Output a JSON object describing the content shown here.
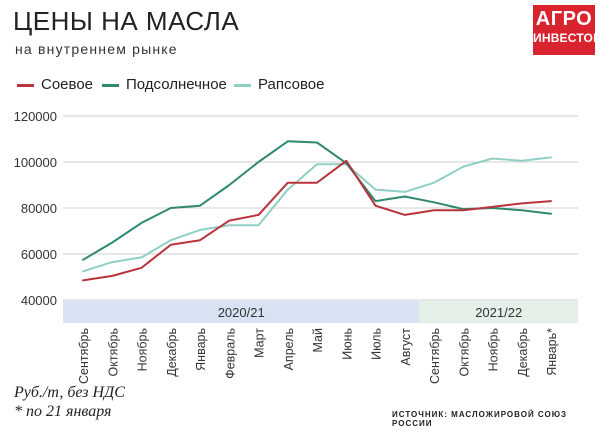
{
  "header": {
    "title": "ЦЕНЫ НА МАСЛА",
    "subtitle": "на внутреннем рынке"
  },
  "logo": {
    "line1": "АГРО",
    "line2": "ИНВЕСТОР"
  },
  "colors": {
    "soy": "#b8343b",
    "sunflower": "#2f8870",
    "rapeseed": "#8fcfc4",
    "band_2020": "#d7e3f2",
    "band_2021": "#e4efe7",
    "logo": "#d9232e"
  },
  "notes": {
    "units": "Руб./т, без НДС",
    "footnote": "* по 21 января",
    "source": "ИСТОЧНИК: МАСЛОЖИРОВОЙ СОЮЗ РОССИИ"
  },
  "chart_data": {
    "type": "line",
    "x": [
      "Сентябрь",
      "Октябрь",
      "Ноябрь",
      "Декабрь",
      "Январь",
      "Февраль",
      "Март",
      "Апрель",
      "Май",
      "Июнь",
      "Июль",
      "Август",
      "Сентябрь",
      "Октябрь",
      "Ноябрь",
      "Декабрь",
      "Январь*"
    ],
    "periods": [
      {
        "label": "2020/21",
        "from": 0,
        "to": 11
      },
      {
        "label": "2021/22",
        "from": 12,
        "to": 16
      }
    ],
    "yticks": [
      "40000",
      "60000",
      "80000",
      "100000",
      "120000"
    ],
    "ylim": [
      40000,
      120000
    ],
    "grid": true,
    "legend_position": "top-left",
    "series": [
      {
        "name": "Соевое",
        "key": "soy",
        "values": [
          48500,
          50500,
          54000,
          64000,
          66000,
          74500,
          77000,
          91000,
          91000,
          100500,
          81000,
          77000,
          79000,
          79000,
          80500,
          82000,
          83000
        ]
      },
      {
        "name": "Подсолнечное",
        "key": "sunflower",
        "values": [
          57500,
          65000,
          73500,
          80000,
          81000,
          90000,
          100000,
          109000,
          108500,
          99500,
          83000,
          85000,
          82500,
          79500,
          80000,
          79000,
          77500
        ]
      },
      {
        "name": "Рапсовое",
        "key": "rapeseed",
        "values": [
          52500,
          56500,
          58500,
          66000,
          70500,
          72500,
          72500,
          88000,
          99000,
          99000,
          88000,
          87000,
          91000,
          98000,
          101500,
          100500,
          102000
        ]
      }
    ]
  }
}
